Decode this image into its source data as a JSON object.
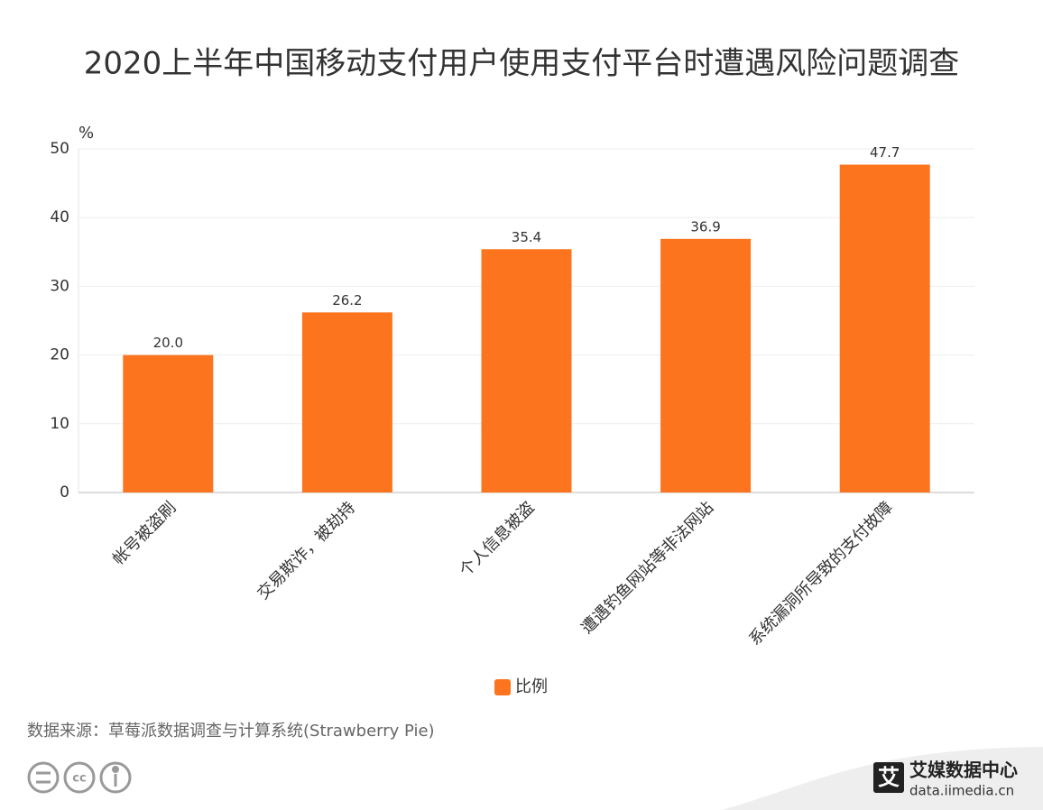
{
  "chart_data": {
    "type": "bar",
    "title": "2020上半年中国移动支付用户使用支付平台时遭遇风险问题调查",
    "y_unit": "%",
    "categories": [
      "帐号被盗刷",
      "交易欺诈，被劫持",
      "个人信息被盗",
      "遭遇钓鱼网站等非法网站",
      "系统漏洞所导致的支付故障"
    ],
    "series": [
      {
        "name": "比例",
        "color": "#fd741e",
        "values": [
          20.0,
          26.2,
          35.4,
          36.9,
          47.7
        ]
      }
    ],
    "value_labels": [
      "20.0",
      "26.2",
      "35.4",
      "36.9",
      "47.7"
    ],
    "ylim": [
      0,
      50
    ],
    "yticks": [
      0,
      10,
      20,
      30,
      40,
      50
    ],
    "grid": true
  },
  "footer": {
    "source": "数据来源：草莓派数据调查与计算系统(Strawberry  Pie)",
    "logo_icon": "艾",
    "logo_name": "艾媒数据中心",
    "logo_url": "data.iimedia.cn"
  }
}
